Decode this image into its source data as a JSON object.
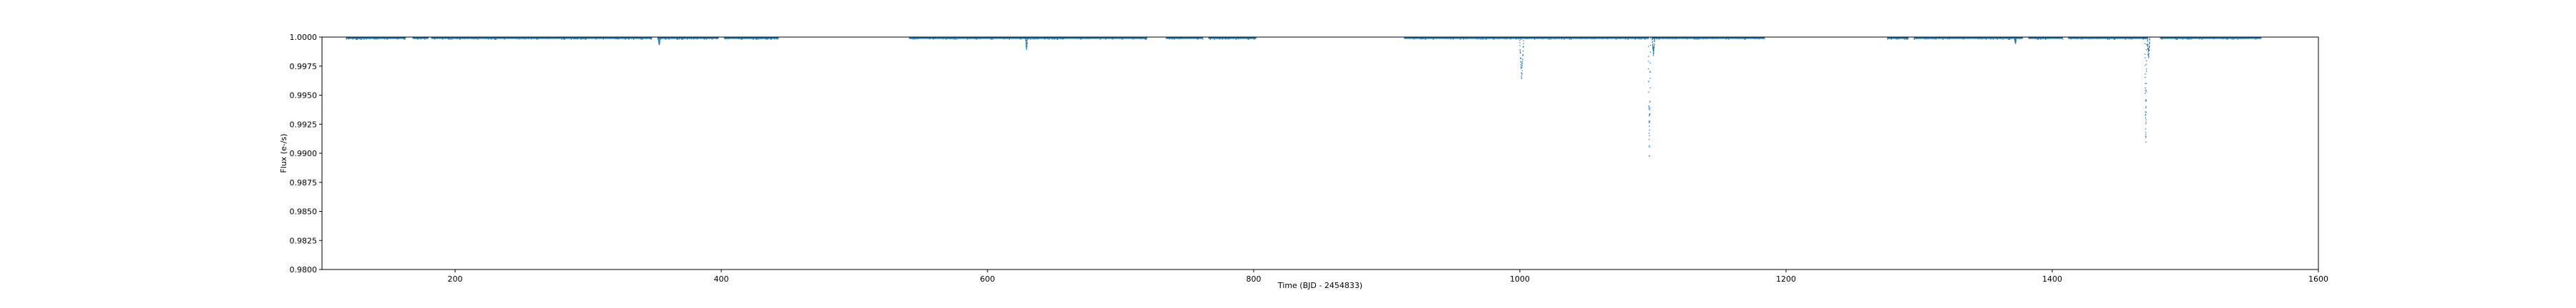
{
  "chart_data": {
    "type": "scatter",
    "title": "",
    "xlabel": "Time (BJD - 2454833)",
    "ylabel": "Flux (e-/s)",
    "xlim": [
      100,
      1600
    ],
    "ylim": [
      0.98,
      1.0
    ],
    "grid": false,
    "x_ticks": [
      200,
      400,
      600,
      800,
      1000,
      1200,
      1400,
      1600
    ],
    "x_tick_labels": [
      "200",
      "400",
      "600",
      "800",
      "1000",
      "1200",
      "1400",
      "1600"
    ],
    "y_ticks": [
      0.98,
      0.9825,
      0.985,
      0.9875,
      0.99,
      0.9925,
      0.995,
      0.9975,
      1.0
    ],
    "y_tick_labels": [
      "0.9800",
      "0.9825",
      "0.9850",
      "0.9875",
      "0.9900",
      "0.9925",
      "0.9950",
      "0.9975",
      "1.0000"
    ],
    "series": [
      {
        "color": "#1f77b4",
        "baseline": 0.99995,
        "segments": [
          [
            118,
            163
          ],
          [
            168,
            180
          ],
          [
            182,
            348
          ],
          [
            352,
            398
          ],
          [
            402,
            443
          ],
          [
            541,
            720
          ],
          [
            734,
            762
          ],
          [
            766,
            802
          ],
          [
            913,
            1097
          ],
          [
            1099,
            1184
          ],
          [
            1276,
            1292
          ],
          [
            1296,
            1378
          ],
          [
            1382,
            1408
          ],
          [
            1412,
            1472
          ],
          [
            1481,
            1557
          ]
        ],
        "dips": [
          {
            "x": 353,
            "min": 0.9994,
            "w": 1.2
          },
          {
            "x": 629,
            "min": 0.999,
            "w": 1.0
          },
          {
            "x": 1001,
            "min": 0.9965,
            "w": 3.0
          },
          {
            "x": 1097,
            "min": 0.9898,
            "w": 1.5
          },
          {
            "x": 1100,
            "min": 0.9985,
            "w": 1.8
          },
          {
            "x": 1372,
            "min": 0.9995,
            "w": 1.0
          },
          {
            "x": 1470,
            "min": 0.991,
            "w": 1.2
          },
          {
            "x": 1472,
            "min": 0.9983,
            "w": 1.8
          }
        ]
      }
    ]
  }
}
